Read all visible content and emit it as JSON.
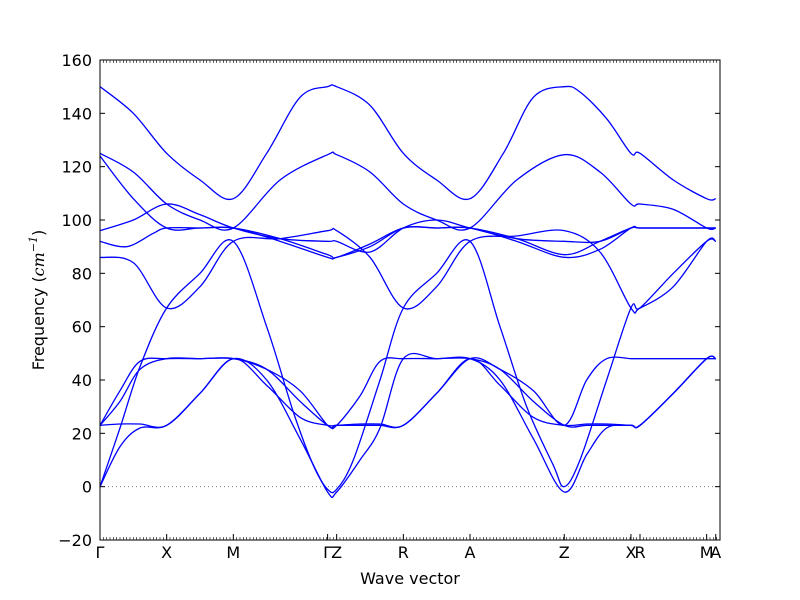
{
  "chart_data": {
    "type": "line",
    "title": "",
    "xlabel": "Wave vector",
    "ylabel_text": "Frequency (",
    "ylabel_unit": "cm",
    "ylabel_exp": "−1",
    "ylabel_close": ")",
    "ylim": [
      -20,
      160
    ],
    "yticks": [
      -20,
      0,
      20,
      40,
      60,
      80,
      100,
      120,
      140,
      160
    ],
    "xlim": [
      0,
      9.3
    ],
    "xticks": [
      {
        "label": "Γ",
        "x": 0
      },
      {
        "label": "X",
        "x": 1
      },
      {
        "label": "M",
        "x": 2
      },
      {
        "label": "Γ",
        "x": 3.414
      },
      {
        "label": "Z",
        "x": 3.55
      },
      {
        "label": "R",
        "x": 4.55
      },
      {
        "label": "A",
        "x": 5.55
      },
      {
        "label": "Z",
        "x": 6.964
      },
      {
        "label": "X",
        "x": 7.964
      },
      {
        "label": "R",
        "x": 8.1
      },
      {
        "label": "M",
        "x": 9.1
      },
      {
        "label": "A",
        "x": 9.236
      }
    ],
    "zero_line": true,
    "line_color": "#0000ff",
    "zero_line_color": "#888888",
    "grid": false,
    "series": [
      {
        "x": [
          0,
          0.5,
          1,
          1.5,
          2,
          2.5,
          3,
          3.414,
          3.55,
          4.05,
          4.55,
          5.05,
          5.55,
          6.05,
          6.5,
          6.964,
          7.2,
          7.6,
          7.964,
          8.1,
          8.6,
          9.1,
          9.236
        ],
        "y": [
          150,
          140,
          125,
          115,
          108,
          125,
          146,
          150,
          150,
          143,
          125,
          115,
          108,
          125,
          146,
          150,
          148,
          138,
          125,
          125,
          115,
          108,
          108
        ]
      },
      {
        "x": [
          0,
          0.5,
          1,
          1.5,
          2,
          2.7,
          3.414,
          3.55,
          4.05,
          4.55,
          5.05,
          5.55,
          6.25,
          6.964,
          7.5,
          7.964,
          8.1,
          8.6,
          9.1,
          9.236
        ],
        "y": [
          125,
          118,
          106,
          100,
          97,
          115,
          124.5,
          124.5,
          118,
          106,
          100,
          97,
          115,
          124.5,
          118,
          106,
          106,
          104,
          97,
          97
        ]
      },
      {
        "x": [
          0,
          0.5,
          1,
          1.5,
          2,
          2.7,
          3.414,
          3.55,
          4.05,
          4.55,
          5.05,
          5.55,
          6.25,
          6.964,
          7.5,
          7.964,
          8.1,
          8.6,
          9.1,
          9.236
        ],
        "y": [
          124,
          108,
          97,
          97,
          97,
          93,
          87,
          86,
          91,
          97,
          97,
          97,
          93,
          87,
          92,
          97,
          97,
          97,
          97,
          97
        ]
      },
      {
        "x": [
          0,
          0.5,
          1,
          1.5,
          2,
          2.7,
          3.414,
          3.55,
          4.05,
          4.55,
          5.05,
          5.55,
          6.25,
          6.964,
          7.5,
          7.964,
          8.1,
          8.6,
          9.1,
          9.236
        ],
        "y": [
          96,
          100,
          106,
          102,
          97,
          93,
          92,
          92,
          88,
          97,
          100,
          97,
          93,
          92,
          92,
          97,
          97,
          97,
          97,
          97
        ]
      },
      {
        "x": [
          0,
          0.4,
          0.8,
          1,
          1.5,
          2,
          2.7,
          3.414,
          3.55,
          4.05,
          4.55,
          5.05,
          5.55,
          6.25,
          6.964,
          7.5,
          7.964,
          8.1,
          8.6,
          9.1,
          9.236
        ],
        "y": [
          92,
          90,
          95,
          97,
          97,
          97,
          92,
          86,
          86,
          90,
          97,
          97,
          97,
          92,
          86,
          89,
          97,
          97,
          97,
          97,
          97
        ]
      },
      {
        "x": [
          0,
          0.5,
          1,
          1.5,
          2,
          2.7,
          3.414,
          3.55,
          4.05,
          4.55,
          5.05,
          5.55,
          6.25,
          6.964,
          7.5,
          7.964,
          8.1,
          8.6,
          9.1,
          9.236
        ],
        "y": [
          86,
          84,
          67,
          75,
          92,
          93,
          96,
          96,
          86,
          67,
          75,
          92,
          94,
          96,
          88,
          67,
          67,
          75,
          92,
          92
        ]
      },
      {
        "x": [
          0,
          0.3,
          0.6,
          1,
          1.5,
          2,
          2.5,
          2.9,
          3.2,
          3.414,
          3.55,
          3.8,
          4.2,
          4.55,
          5.05,
          5.55,
          6.0,
          6.4,
          6.8,
          6.964,
          7.2,
          7.6,
          7.964,
          8.1,
          8.6,
          9.1,
          9.236
        ],
        "y": [
          0,
          22,
          45,
          67,
          80,
          92,
          60,
          28,
          8,
          -1,
          -1,
          10,
          40,
          67,
          80,
          92,
          60,
          30,
          8,
          0,
          10,
          40,
          67,
          67,
          80,
          92,
          92
        ]
      },
      {
        "x": [
          0,
          0.3,
          0.6,
          1,
          1.5,
          2,
          2.5,
          3.0,
          3.414,
          3.55,
          3.9,
          4.2,
          4.55,
          5.05,
          5.55,
          6.0,
          6.5,
          6.964,
          7.3,
          7.6,
          7.964,
          8.1,
          8.6,
          9.1,
          9.236
        ],
        "y": [
          23,
          32,
          44,
          48,
          48,
          48,
          44,
          32,
          23,
          23,
          34,
          47,
          48,
          48,
          48,
          44,
          32,
          23,
          23,
          23,
          23,
          23,
          35,
          48,
          48
        ]
      },
      {
        "x": [
          0,
          0.3,
          0.6,
          1,
          1.5,
          2,
          2.5,
          3.0,
          3.414,
          3.55,
          3.9,
          4.2,
          4.55,
          5.05,
          5.55,
          6.0,
          6.5,
          6.964,
          7.3,
          7.6,
          7.964,
          8.1,
          8.6,
          9.1,
          9.236
        ],
        "y": [
          23,
          36,
          47,
          48,
          48,
          48,
          44,
          36,
          23,
          23,
          23,
          23,
          23,
          35,
          48,
          44,
          36,
          23,
          40,
          48,
          48,
          48,
          48,
          48,
          48
        ]
      },
      {
        "x": [
          0,
          0.3,
          0.6,
          1,
          1.5,
          2,
          2.5,
          3.0,
          3.414,
          3.55,
          3.9,
          4.2,
          4.55,
          5.05,
          5.55,
          6.0,
          6.5,
          6.964,
          7.3,
          7.6,
          7.964,
          8.1,
          8.6,
          9.1,
          9.236
        ],
        "y": [
          0,
          15,
          22,
          23,
          35,
          48,
          40,
          18,
          -2,
          -2,
          10,
          22,
          48,
          48,
          48,
          40,
          18,
          -2,
          12,
          22,
          23,
          23,
          35,
          48,
          48
        ]
      },
      {
        "x": [
          0,
          0.3,
          0.6,
          1,
          1.5,
          2,
          2.5,
          3.0,
          3.414,
          3.55,
          3.9,
          4.2,
          4.55,
          5.05,
          5.55,
          6.0,
          6.5,
          6.964,
          7.3,
          7.6,
          7.964,
          8.1,
          8.6,
          9.1,
          9.236
        ],
        "y": [
          23,
          23.5,
          23.5,
          23,
          35,
          48,
          38,
          26,
          23,
          23,
          23.5,
          23.5,
          23,
          35,
          48,
          38,
          26,
          23,
          23.5,
          23.5,
          23,
          23,
          35,
          48,
          48
        ]
      }
    ]
  }
}
